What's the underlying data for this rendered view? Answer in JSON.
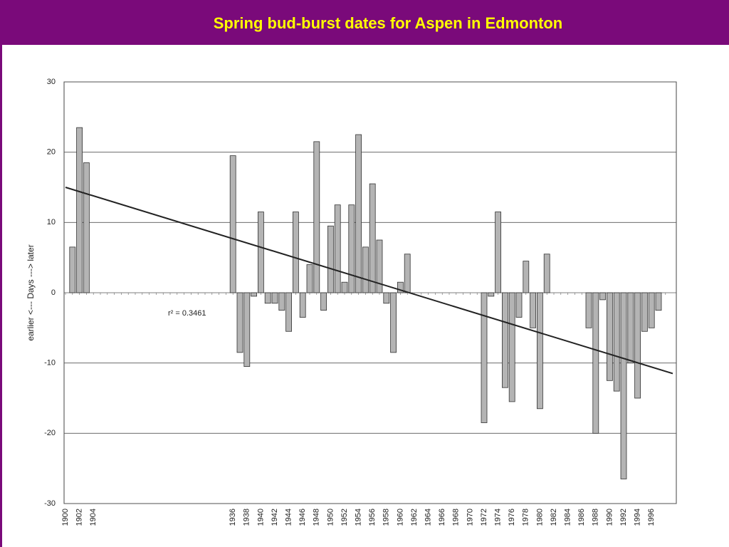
{
  "chart_data": {
    "type": "bar",
    "title": "Spring bud-burst dates for Aspen in Edmonton",
    "y_label": "earlier <--- Days ---> later",
    "annotation": "r² = 0.3461",
    "categories": [
      "1900",
      null,
      "1902",
      null,
      "1904",
      null,
      null,
      null,
      null,
      null,
      null,
      null,
      null,
      null,
      null,
      null,
      null,
      null,
      null,
      null,
      null,
      null,
      null,
      null,
      "1936",
      null,
      "1938",
      null,
      "1940",
      null,
      "1942",
      null,
      "1944",
      null,
      "1946",
      null,
      "1948",
      null,
      "1950",
      null,
      "1952",
      null,
      "1954",
      null,
      "1956",
      null,
      "1958",
      null,
      "1960",
      null,
      "1962",
      null,
      "1964",
      null,
      "1966",
      null,
      "1968",
      null,
      "1970",
      null,
      "1972",
      null,
      "1974",
      null,
      "1976",
      null,
      "1978",
      null,
      "1980",
      null,
      "1982",
      null,
      "1984",
      null,
      "1986",
      null,
      "1988",
      null,
      "1990",
      null,
      "1992",
      null,
      "1994",
      null,
      "1996",
      null,
      null
    ],
    "values": [
      null,
      6.5,
      23.5,
      18.5,
      null,
      null,
      null,
      null,
      null,
      null,
      null,
      null,
      null,
      null,
      null,
      null,
      null,
      null,
      null,
      null,
      null,
      null,
      null,
      null,
      19.5,
      -8.5,
      -10.5,
      -0.5,
      11.5,
      -1.5,
      -1.5,
      -2.5,
      -5.5,
      11.5,
      -3.5,
      4,
      21.5,
      -2.5,
      9.5,
      12.5,
      1.5,
      12.5,
      22.5,
      6.5,
      15.5,
      7.5,
      -1.5,
      -8.5,
      1.5,
      5.5,
      null,
      null,
      null,
      null,
      null,
      null,
      null,
      null,
      null,
      null,
      -18.5,
      -0.5,
      11.5,
      -13.5,
      -15.5,
      -3.5,
      4.5,
      -5,
      -16.5,
      5.5,
      null,
      null,
      null,
      null,
      null,
      -5,
      -20,
      -1,
      -12.5,
      -14,
      -26.5,
      -10,
      -15,
      -5.5,
      -5,
      -2.5,
      null
    ],
    "color": "#b4b4b4",
    "trend": [
      15,
      -11.5
    ],
    "ylim": [
      -30,
      30
    ],
    "yticks": [
      -30,
      -20,
      -10,
      0,
      10,
      20,
      30
    ],
    "grid": true
  }
}
